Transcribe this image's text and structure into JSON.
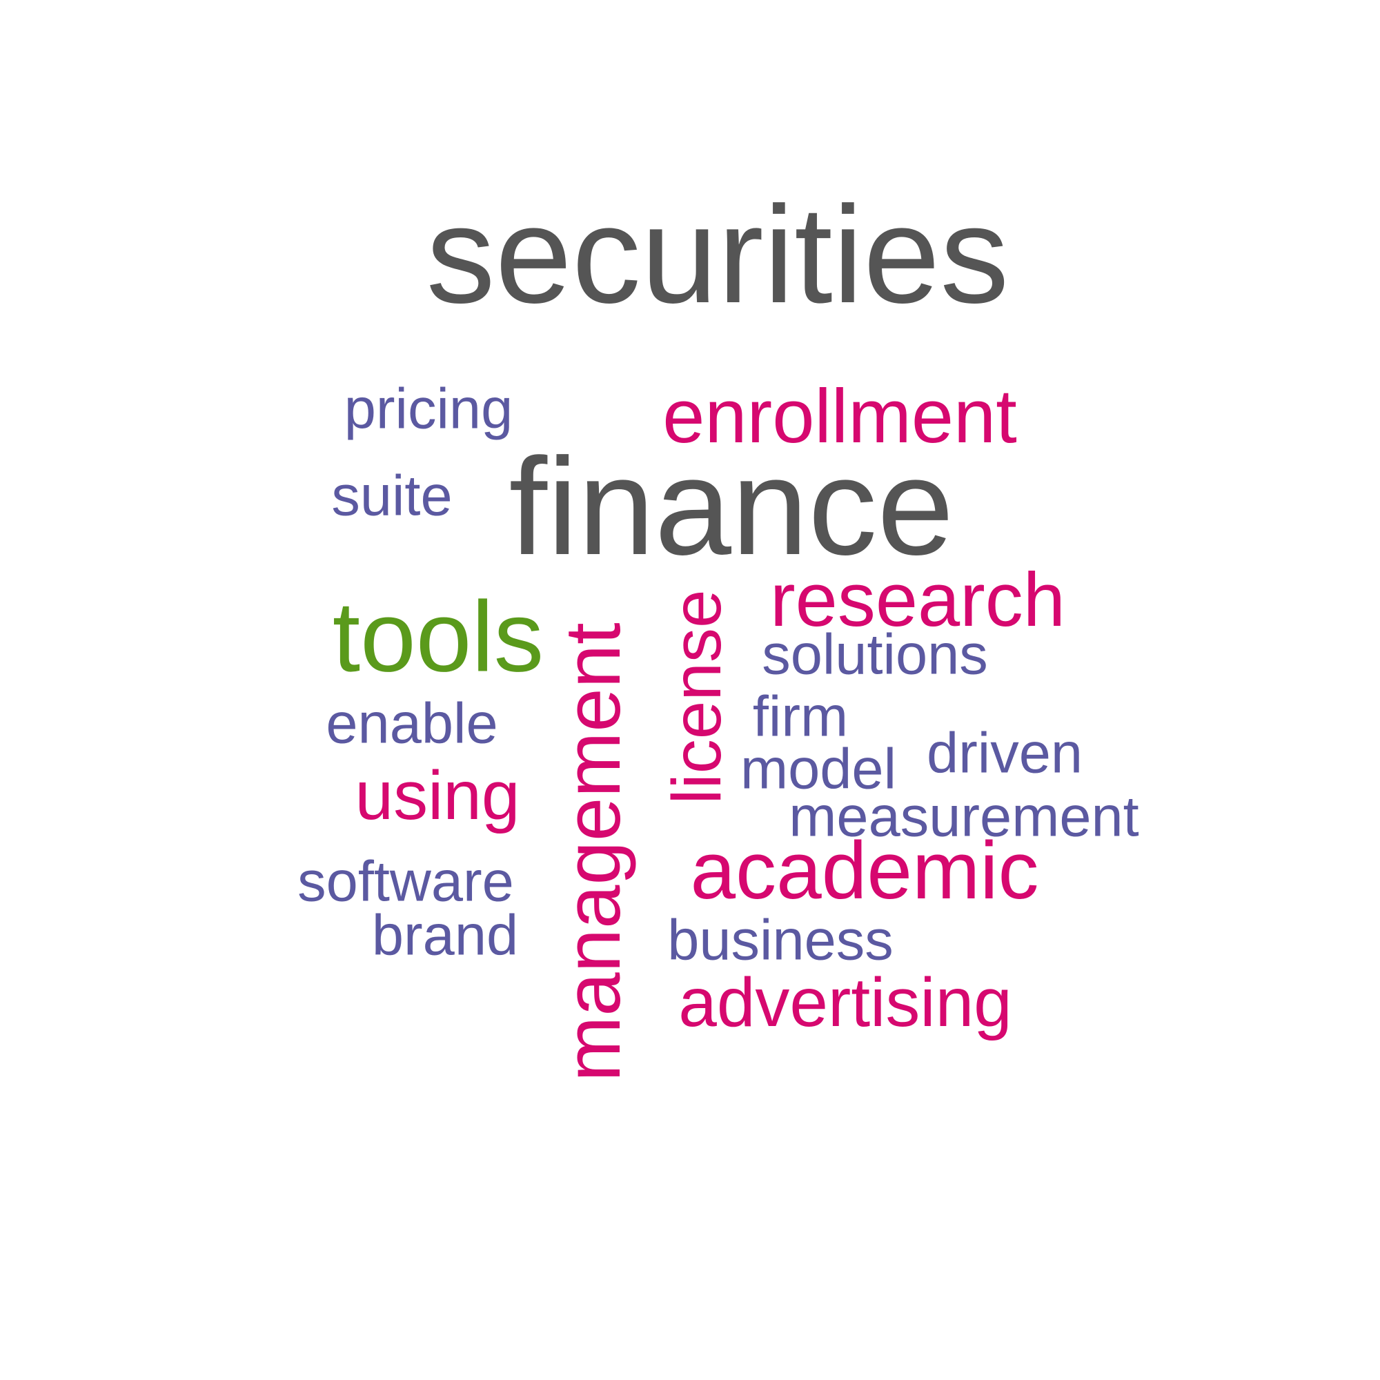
{
  "colors": {
    "gray": "#555555",
    "magenta": "#d6086f",
    "purple": "#5b59a1",
    "green": "#5a9a1b"
  },
  "words": [
    {
      "text": "securities",
      "color": "gray",
      "orientation": "horizontal"
    },
    {
      "text": "finance",
      "color": "gray",
      "orientation": "horizontal"
    },
    {
      "text": "enrollment",
      "color": "magenta",
      "orientation": "horizontal"
    },
    {
      "text": "management",
      "color": "magenta",
      "orientation": "vertical"
    },
    {
      "text": "tools",
      "color": "green",
      "orientation": "horizontal"
    },
    {
      "text": "academic",
      "color": "magenta",
      "orientation": "horizontal"
    },
    {
      "text": "research",
      "color": "magenta",
      "orientation": "horizontal"
    },
    {
      "text": "license",
      "color": "magenta",
      "orientation": "vertical"
    },
    {
      "text": "advertising",
      "color": "magenta",
      "orientation": "horizontal"
    },
    {
      "text": "using",
      "color": "magenta",
      "orientation": "horizontal"
    },
    {
      "text": "pricing",
      "color": "purple",
      "orientation": "horizontal"
    },
    {
      "text": "suite",
      "color": "purple",
      "orientation": "horizontal"
    },
    {
      "text": "solutions",
      "color": "purple",
      "orientation": "horizontal"
    },
    {
      "text": "firm",
      "color": "purple",
      "orientation": "horizontal"
    },
    {
      "text": "enable",
      "color": "purple",
      "orientation": "horizontal"
    },
    {
      "text": "driven",
      "color": "purple",
      "orientation": "horizontal"
    },
    {
      "text": "model",
      "color": "purple",
      "orientation": "horizontal"
    },
    {
      "text": "measurement",
      "color": "purple",
      "orientation": "horizontal"
    },
    {
      "text": "software",
      "color": "purple",
      "orientation": "horizontal"
    },
    {
      "text": "brand",
      "color": "purple",
      "orientation": "horizontal"
    },
    {
      "text": "business",
      "color": "purple",
      "orientation": "horizontal"
    }
  ]
}
